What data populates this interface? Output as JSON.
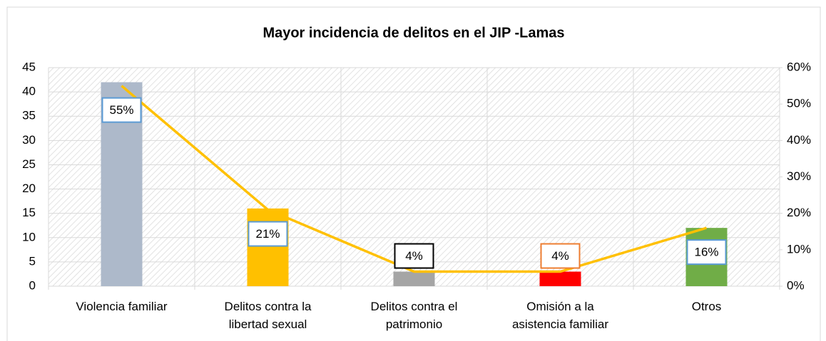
{
  "chart_data": {
    "type": "bar",
    "title": "Mayor incidencia de delitos en el JIP -Lamas",
    "categories": [
      "Violencia familiar",
      "Delitos contra la libertad sexual",
      "Delitos contra el patrimonio",
      "Omisión a la asistencia familiar",
      "Otros"
    ],
    "series": [
      {
        "type": "bar",
        "values": [
          42,
          16,
          3,
          3,
          12
        ],
        "colors": [
          "#adb9ca",
          "#ffc000",
          "#a5a5a5",
          "#ff0000",
          "#70ad47"
        ]
      },
      {
        "type": "line",
        "axis": "y2",
        "color": "#ffc000",
        "values": [
          55,
          21,
          4,
          4,
          16
        ],
        "value_labels": [
          "55%",
          "21%",
          "4%",
          "4%",
          "16%"
        ],
        "label_colors": [
          "#5b9bd5",
          "#5b9bd5",
          "#000000",
          "#ed7d31",
          "#5b9bd5"
        ]
      }
    ],
    "ylim": [
      0,
      45
    ],
    "yticks": [
      0,
      5,
      10,
      15,
      20,
      25,
      30,
      35,
      40,
      45
    ],
    "y2lim": [
      0,
      60
    ],
    "y2ticks": [
      {
        "value": 0,
        "label": "0%"
      },
      {
        "value": 10,
        "label": "10%"
      },
      {
        "value": 20,
        "label": "20%"
      },
      {
        "value": 30,
        "label": "30%"
      },
      {
        "value": 40,
        "label": "40%"
      },
      {
        "value": 50,
        "label": "50%"
      },
      {
        "value": 60,
        "label": "60%"
      }
    ],
    "grid": true
  }
}
